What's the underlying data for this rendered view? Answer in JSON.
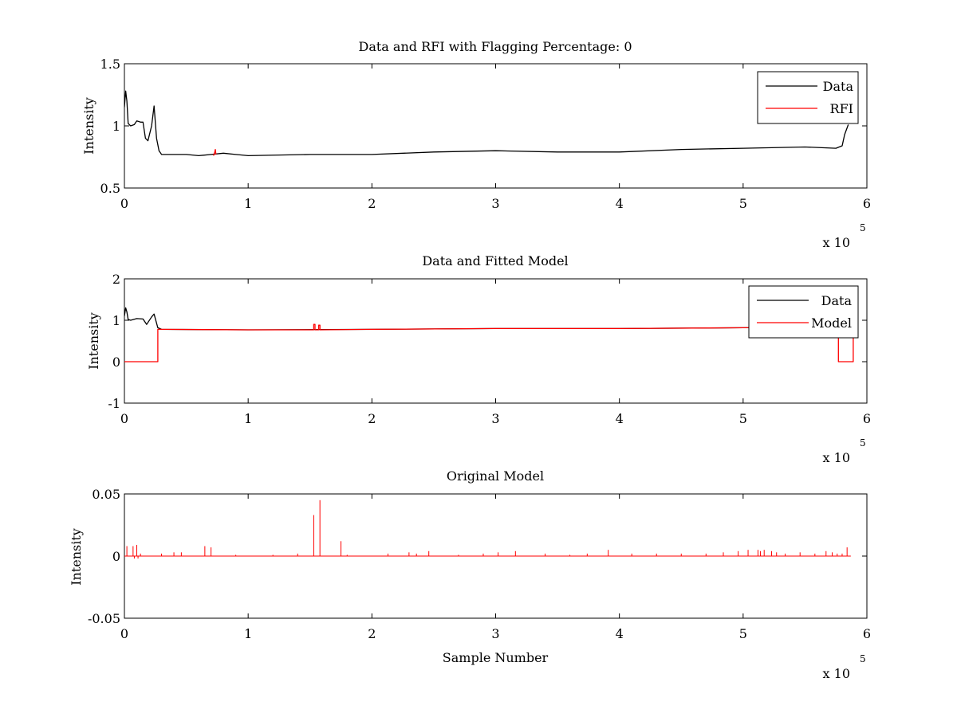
{
  "chart_data": [
    {
      "type": "line",
      "title": "Data and RFI with Flagging Percentage: 0",
      "xlabel": "",
      "ylabel": "Intensity",
      "xlim": [
        0,
        6
      ],
      "ylim": [
        0.5,
        1.5
      ],
      "xticks": [
        0,
        1,
        2,
        3,
        4,
        5,
        6
      ],
      "xtick_labels": [
        "0",
        "1",
        "2",
        "3",
        "4",
        "5",
        "6"
      ],
      "yticks": [
        0.5,
        1,
        1.5
      ],
      "ytick_labels": [
        "0.5",
        "1",
        "1.5"
      ],
      "x_multiplier": "x 10",
      "x_exponent": "5",
      "grid": false,
      "legend_position": "top-right",
      "series": [
        {
          "name": "Data",
          "color": "#000000",
          "x": [
            0,
            0.01,
            0.02,
            0.03,
            0.05,
            0.08,
            0.1,
            0.13,
            0.15,
            0.17,
            0.19,
            0.22,
            0.24,
            0.26,
            0.28,
            0.3,
            0.4,
            0.5,
            0.6,
            0.7,
            0.8,
            0.9,
            1.0,
            1.5,
            2.0,
            2.5,
            3.0,
            3.5,
            4.0,
            4.5,
            5.0,
            5.5,
            5.75,
            5.8,
            5.82,
            5.85
          ],
          "y": [
            1.15,
            1.28,
            1.2,
            1.02,
            1.0,
            1.01,
            1.04,
            1.03,
            1.03,
            0.9,
            0.88,
            1.0,
            1.16,
            0.9,
            0.8,
            0.77,
            0.77,
            0.77,
            0.76,
            0.77,
            0.78,
            0.77,
            0.76,
            0.77,
            0.77,
            0.79,
            0.8,
            0.79,
            0.79,
            0.81,
            0.82,
            0.83,
            0.82,
            0.84,
            0.93,
            1.01
          ]
        },
        {
          "name": "RFI",
          "color": "#ff0000",
          "x": [
            0.72,
            0.73,
            0.735,
            0.74
          ],
          "y": [
            0.76,
            0.79,
            0.81,
            0.77
          ]
        }
      ]
    },
    {
      "type": "line",
      "title": "Data and Fitted Model",
      "xlabel": "",
      "ylabel": "Intensity",
      "xlim": [
        0,
        6
      ],
      "ylim": [
        -1,
        2
      ],
      "xticks": [
        0,
        1,
        2,
        3,
        4,
        5,
        6
      ],
      "xtick_labels": [
        "0",
        "1",
        "2",
        "3",
        "4",
        "5",
        "6"
      ],
      "yticks": [
        -1,
        0,
        1,
        2
      ],
      "ytick_labels": [
        "-1",
        "0",
        "1",
        "2"
      ],
      "x_multiplier": "x 10",
      "x_exponent": "5",
      "grid": false,
      "legend_position": "top-right",
      "series": [
        {
          "name": "Data",
          "color": "#000000",
          "x": [
            0,
            0.01,
            0.02,
            0.03,
            0.05,
            0.1,
            0.15,
            0.18,
            0.22,
            0.24,
            0.27,
            0.3,
            1.0,
            2.0,
            3.0,
            4.0,
            5.0,
            5.5,
            5.8
          ],
          "y": [
            1.1,
            1.3,
            1.2,
            1.02,
            1.0,
            1.04,
            1.03,
            0.9,
            1.08,
            1.15,
            0.82,
            0.78,
            0.77,
            0.78,
            0.8,
            0.8,
            0.82,
            0.83,
            0.84
          ]
        },
        {
          "name": "Model",
          "color": "#ff0000",
          "x": [
            0,
            0.27,
            0.27,
            0.3,
            1.0,
            1.53,
            1.53,
            1.54,
            1.54,
            1.57,
            1.57,
            1.58,
            1.58,
            2.0,
            3.0,
            4.0,
            5.0,
            5.77,
            5.77,
            5.89,
            5.89
          ],
          "y": [
            0.0,
            0.0,
            0.78,
            0.78,
            0.77,
            0.77,
            0.9,
            0.9,
            0.77,
            0.77,
            0.88,
            0.88,
            0.77,
            0.78,
            0.8,
            0.8,
            0.82,
            0.84,
            0.0,
            0.0,
            0.84
          ]
        }
      ]
    },
    {
      "type": "line",
      "title": "Original Model",
      "xlabel": "Sample Number",
      "ylabel": "Intensity",
      "xlim": [
        0,
        6
      ],
      "ylim": [
        -0.05,
        0.05
      ],
      "xticks": [
        0,
        1,
        2,
        3,
        4,
        5,
        6
      ],
      "xtick_labels": [
        "0",
        "1",
        "2",
        "3",
        "4",
        "5",
        "6"
      ],
      "yticks": [
        -0.05,
        0,
        0.05
      ],
      "ytick_labels": [
        "-0.05",
        "0",
        "0.05"
      ],
      "x_multiplier": "x 10",
      "x_exponent": "5",
      "grid": false,
      "legend_position": "none",
      "series": [
        {
          "name": "",
          "color": "#ff0000",
          "baseline": 0,
          "range": [
            0,
            5.87
          ],
          "spikes": [
            [
              0.02,
              0.008
            ],
            [
              0.07,
              0.008
            ],
            [
              0.08,
              -0.002
            ],
            [
              0.1,
              0.009
            ],
            [
              0.11,
              -0.002
            ],
            [
              0.13,
              0.002
            ],
            [
              0.3,
              0.002
            ],
            [
              0.4,
              0.003
            ],
            [
              0.46,
              0.003
            ],
            [
              0.65,
              0.008
            ],
            [
              0.7,
              0.007
            ],
            [
              0.9,
              0.001
            ],
            [
              1.2,
              0.001
            ],
            [
              1.4,
              0.002
            ],
            [
              1.53,
              0.033
            ],
            [
              1.58,
              0.045
            ],
            [
              1.75,
              0.012
            ],
            [
              1.8,
              0.001
            ],
            [
              2.13,
              0.002
            ],
            [
              2.3,
              0.003
            ],
            [
              2.36,
              0.002
            ],
            [
              2.46,
              0.004
            ],
            [
              2.7,
              0.001
            ],
            [
              2.9,
              0.002
            ],
            [
              3.02,
              0.003
            ],
            [
              3.16,
              0.004
            ],
            [
              3.4,
              0.002
            ],
            [
              3.6,
              0.001
            ],
            [
              3.74,
              0.002
            ],
            [
              3.91,
              0.005
            ],
            [
              4.1,
              0.002
            ],
            [
              4.3,
              0.002
            ],
            [
              4.5,
              0.002
            ],
            [
              4.7,
              0.002
            ],
            [
              4.84,
              0.003
            ],
            [
              4.96,
              0.004
            ],
            [
              5.04,
              0.005
            ],
            [
              5.12,
              0.005
            ],
            [
              5.14,
              0.004
            ],
            [
              5.17,
              0.005
            ],
            [
              5.23,
              0.004
            ],
            [
              5.27,
              0.003
            ],
            [
              5.34,
              0.002
            ],
            [
              5.46,
              0.003
            ],
            [
              5.58,
              0.002
            ],
            [
              5.67,
              0.004
            ],
            [
              5.72,
              0.003
            ],
            [
              5.76,
              0.002
            ],
            [
              5.8,
              0.002
            ],
            [
              5.84,
              0.007
            ]
          ]
        }
      ]
    }
  ]
}
